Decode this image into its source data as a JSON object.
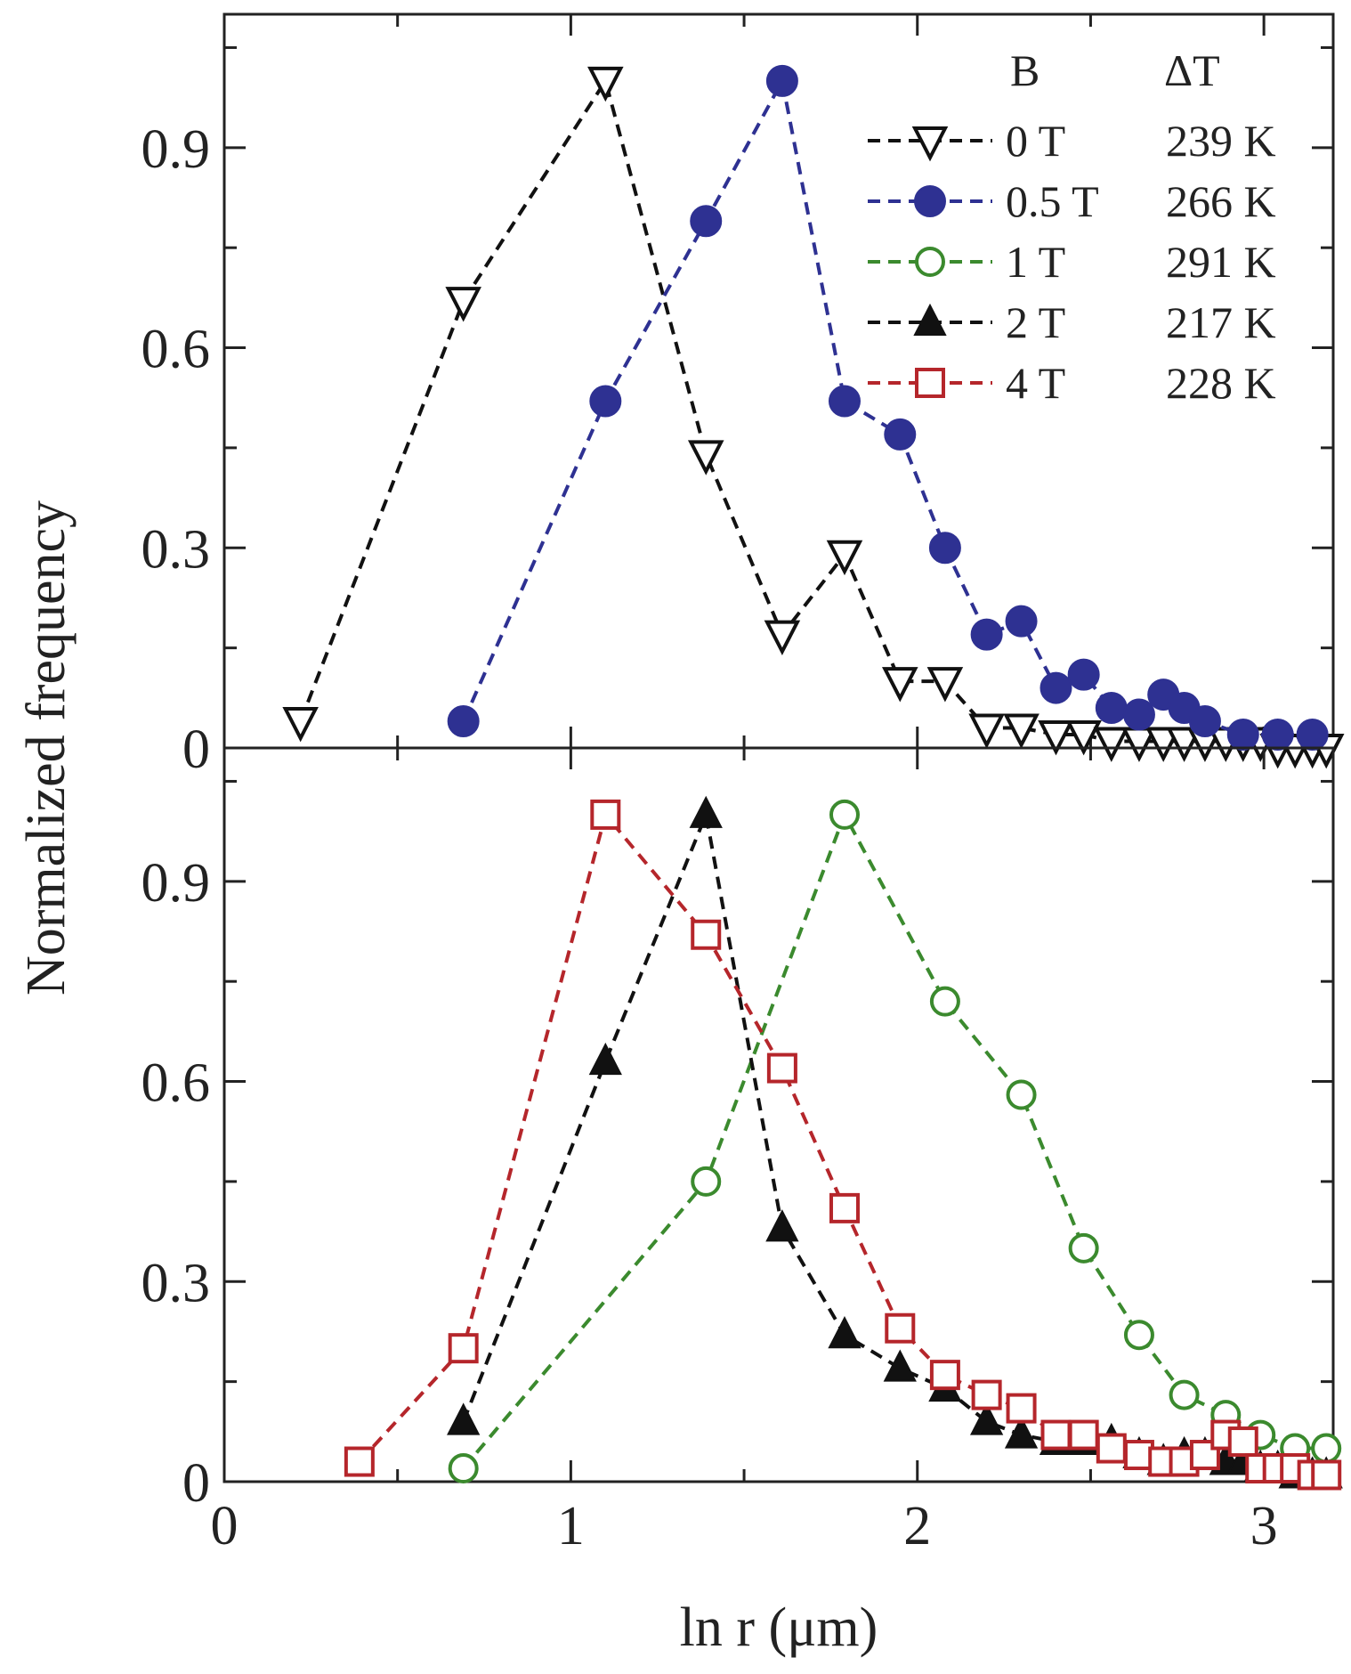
{
  "chart_data": {
    "type": "line",
    "ylabel": "Normalized frequency",
    "xlabel": "ln r (μm)",
    "xlim": [
      0,
      3.2
    ],
    "ylim": [
      0,
      1.1
    ],
    "x_ticks": [
      "0",
      "1",
      "2",
      "3"
    ],
    "y_ticks": [
      "0",
      "0.3",
      "0.6",
      "0.9"
    ],
    "legend": {
      "header_b": "B",
      "header_dt": "ΔT",
      "entries": [
        {
          "b": "0 T",
          "dt": "239 K"
        },
        {
          "b": "0.5 T",
          "dt": "266 K"
        },
        {
          "b": "1 T",
          "dt": "291 K"
        },
        {
          "b": "2 T",
          "dt": "217 K"
        },
        {
          "b": "4 T",
          "dt": "228 K"
        }
      ]
    },
    "panels": [
      {
        "name": "top",
        "series": [
          {
            "name": "0 T",
            "color": "#111111",
            "marker": "triangle-down-open",
            "x": [
              0.22,
              0.69,
              1.1,
              1.39,
              1.61,
              1.79,
              1.95,
              2.08,
              2.2,
              2.3,
              2.4,
              2.48,
              2.56,
              2.64,
              2.71,
              2.77,
              2.83,
              2.89,
              2.94,
              2.99,
              3.04,
              3.09,
              3.14,
              3.18
            ],
            "y": [
              0.04,
              0.67,
              1.0,
              0.44,
              0.17,
              0.29,
              0.1,
              0.1,
              0.03,
              0.03,
              0.02,
              0.02,
              0.01,
              0.01,
              0.01,
              0.01,
              0.01,
              0.01,
              0.01,
              0.01,
              0.0,
              0.0,
              0.0,
              0.0
            ]
          },
          {
            "name": "0.5 T",
            "color": "#2e3192",
            "marker": "circle-filled",
            "x": [
              0.69,
              1.1,
              1.39,
              1.61,
              1.79,
              1.95,
              2.08,
              2.2,
              2.3,
              2.4,
              2.48,
              2.56,
              2.64,
              2.71,
              2.77,
              2.83,
              2.94,
              3.04,
              3.14
            ],
            "y": [
              0.04,
              0.52,
              0.79,
              1.0,
              0.52,
              0.47,
              0.3,
              0.17,
              0.19,
              0.09,
              0.11,
              0.06,
              0.05,
              0.08,
              0.06,
              0.04,
              0.02,
              0.02,
              0.02
            ]
          }
        ]
      },
      {
        "name": "bottom",
        "series": [
          {
            "name": "1 T",
            "color": "#3b8a2e",
            "marker": "circle-open",
            "x": [
              0.69,
              1.39,
              1.79,
              2.08,
              2.3,
              2.48,
              2.64,
              2.77,
              2.89,
              2.99,
              3.09,
              3.18
            ],
            "y": [
              0.02,
              0.45,
              1.0,
              0.72,
              0.58,
              0.35,
              0.22,
              0.13,
              0.1,
              0.07,
              0.05,
              0.05
            ]
          },
          {
            "name": "2 T",
            "color": "#111111",
            "marker": "triangle-up-filled",
            "x": [
              0.69,
              1.1,
              1.39,
              1.61,
              1.79,
              1.95,
              2.08,
              2.2,
              2.3,
              2.4,
              2.48,
              2.56,
              2.64,
              2.71,
              2.77,
              2.83,
              2.89,
              2.94,
              2.99,
              3.04,
              3.09,
              3.14,
              3.18
            ],
            "y": [
              0.09,
              0.63,
              1.0,
              0.38,
              0.22,
              0.17,
              0.14,
              0.09,
              0.07,
              0.06,
              0.06,
              0.06,
              0.04,
              0.03,
              0.04,
              0.04,
              0.03,
              0.03,
              0.02,
              0.02,
              0.01,
              0.01,
              0.01
            ]
          },
          {
            "name": "4 T",
            "color": "#b5262b",
            "marker": "square-open",
            "x": [
              0.39,
              0.69,
              1.1,
              1.39,
              1.61,
              1.79,
              1.95,
              2.08,
              2.2,
              2.3,
              2.4,
              2.48,
              2.56,
              2.64,
              2.71,
              2.77,
              2.83,
              2.89,
              2.94,
              2.99,
              3.04,
              3.09,
              3.14,
              3.18
            ],
            "y": [
              0.03,
              0.2,
              1.0,
              0.82,
              0.62,
              0.41,
              0.23,
              0.16,
              0.13,
              0.11,
              0.07,
              0.07,
              0.05,
              0.04,
              0.03,
              0.03,
              0.04,
              0.07,
              0.06,
              0.02,
              0.02,
              0.02,
              0.01,
              0.01
            ]
          }
        ]
      }
    ]
  }
}
